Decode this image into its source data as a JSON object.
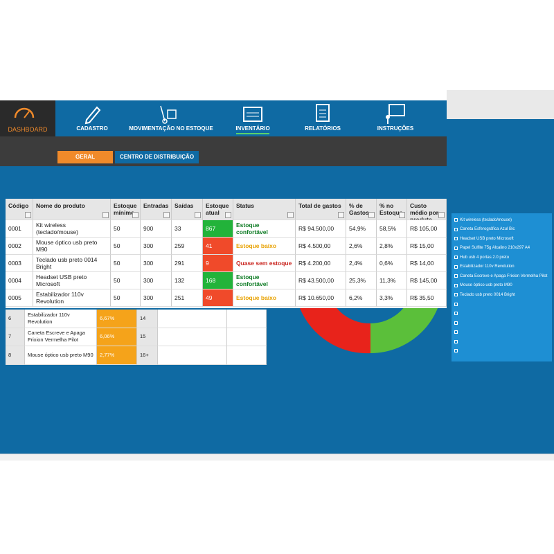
{
  "nav": {
    "logo": "DASHBOARD",
    "items": [
      "CADASTRO",
      "MOVIMENTAÇÃO NO ESTOQUE",
      "INVENTÁRIO",
      "RELATÓRIOS",
      "INSTRUÇÕES"
    ]
  },
  "tabs": [
    "GERAL",
    "CENTRO DE DISTRIBUIÇÃO"
  ],
  "table": {
    "headers": [
      "Código",
      "Nome do produto",
      "Estoque mínimo",
      "Entradas",
      "Saídas",
      "Estoque atual",
      "Status",
      "Total de gastos",
      "% de Gastos",
      "% no Estoque",
      "Custo médio por produto"
    ],
    "rows": [
      [
        "0001",
        "Kit wireless (teclado/mouse)",
        "50",
        "900",
        "33",
        "867",
        "Estoque confortável",
        "R$ 94.500,00",
        "54,9%",
        "58,5%",
        "R$ 105,00"
      ],
      [
        "0002",
        "Mouse óptico usb preto M90",
        "50",
        "300",
        "259",
        "41",
        "Estoque baixo",
        "R$ 4.500,00",
        "2,6%",
        "2,8%",
        "R$ 15,00"
      ],
      [
        "0003",
        "Teclado usb preto 0014 Bright",
        "50",
        "300",
        "291",
        "9",
        "Quase sem estoque",
        "R$ 4.200,00",
        "2,4%",
        "0,6%",
        "R$ 14,00"
      ],
      [
        "0004",
        "Headset USB  preto Microsoft",
        "50",
        "300",
        "132",
        "168",
        "Estoque confortável",
        "R$ 43.500,00",
        "25,3%",
        "11,3%",
        "R$ 145,00"
      ],
      [
        "0005",
        "Estabilizador 110v Revolution",
        "50",
        "300",
        "251",
        "49",
        "Estoque baixo",
        "R$ 10.650,00",
        "6,2%",
        "3,3%",
        "R$ 35,50"
      ]
    ]
  },
  "ranking": {
    "rows": [
      [
        "6",
        "Estabilizador 110v Revolution",
        "6,67%"
      ],
      [
        "7",
        "Caneta Escreve e Apaga Frixion Vermelha Pilot",
        "6,06%"
      ],
      [
        "8",
        "Mouse óptico usb preto M90",
        "2,77%"
      ]
    ],
    "positions": [
      "14",
      "15",
      "16+"
    ]
  },
  "legend": [
    "Kit wireless (teclado/mouse)",
    "Caneta Esferográfica Azul Bic",
    "Headset USB  preto Microsoft",
    "Papel Sulfite 75g Alcalino 210x297 A4",
    "Hub usb 4 portas 2.0 preto",
    "Estabilizador 110v Revolution",
    "Caneta Escreve e Apaga Frixion Vermelha Pilot",
    "Mouse óptico usb preto M90",
    "Teclado usb preto 0014 Bright"
  ]
}
